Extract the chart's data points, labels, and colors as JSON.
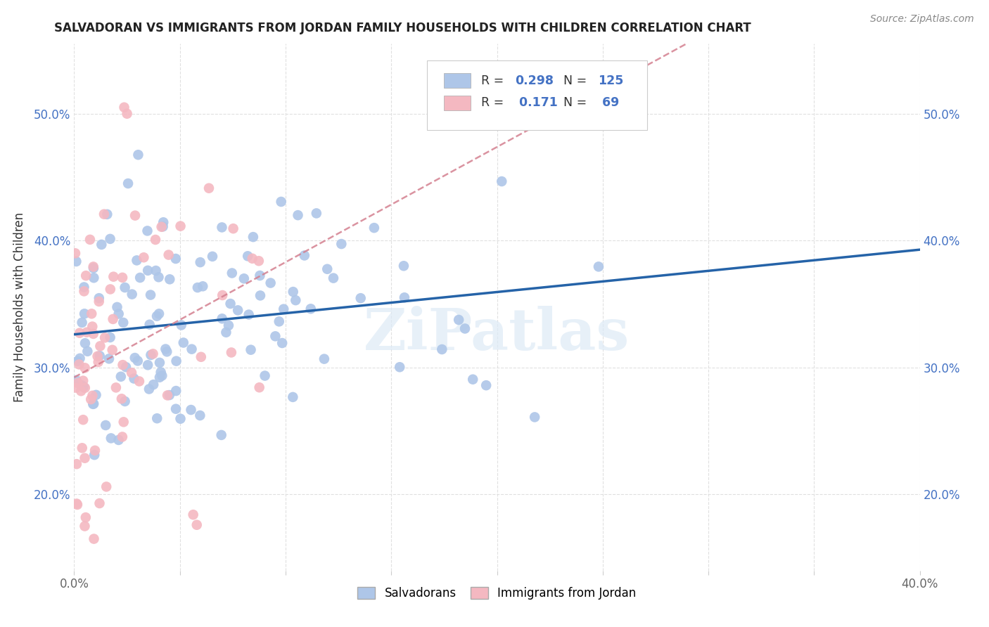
{
  "title": "SALVADORAN VS IMMIGRANTS FROM JORDAN FAMILY HOUSEHOLDS WITH CHILDREN CORRELATION CHART",
  "source": "Source: ZipAtlas.com",
  "ylabel": "Family Households with Children",
  "xlim": [
    0.0,
    0.4
  ],
  "ylim": [
    0.14,
    0.555
  ],
  "xticks": [
    0.0,
    0.05,
    0.1,
    0.15,
    0.2,
    0.25,
    0.3,
    0.35,
    0.4
  ],
  "yticks": [
    0.2,
    0.3,
    0.4,
    0.5
  ],
  "ytick_labels": [
    "20.0%",
    "30.0%",
    "40.0%",
    "50.0%"
  ],
  "xtick_labels": [
    "0.0%",
    "",
    "",
    "",
    "",
    "",
    "",
    "",
    "40.0%"
  ],
  "salvadoran_color": "#aec6e8",
  "jordan_color": "#f4b8c1",
  "salvadoran_line_color": "#2563a8",
  "jordan_line_color": "#d48090",
  "background_color": "#ffffff",
  "R_salvadoran": 0.298,
  "N_salvadoran": 125,
  "R_jordan": 0.171,
  "N_jordan": 69,
  "watermark_color": "#ddeaf6",
  "watermark_text": "ZiPatlas"
}
